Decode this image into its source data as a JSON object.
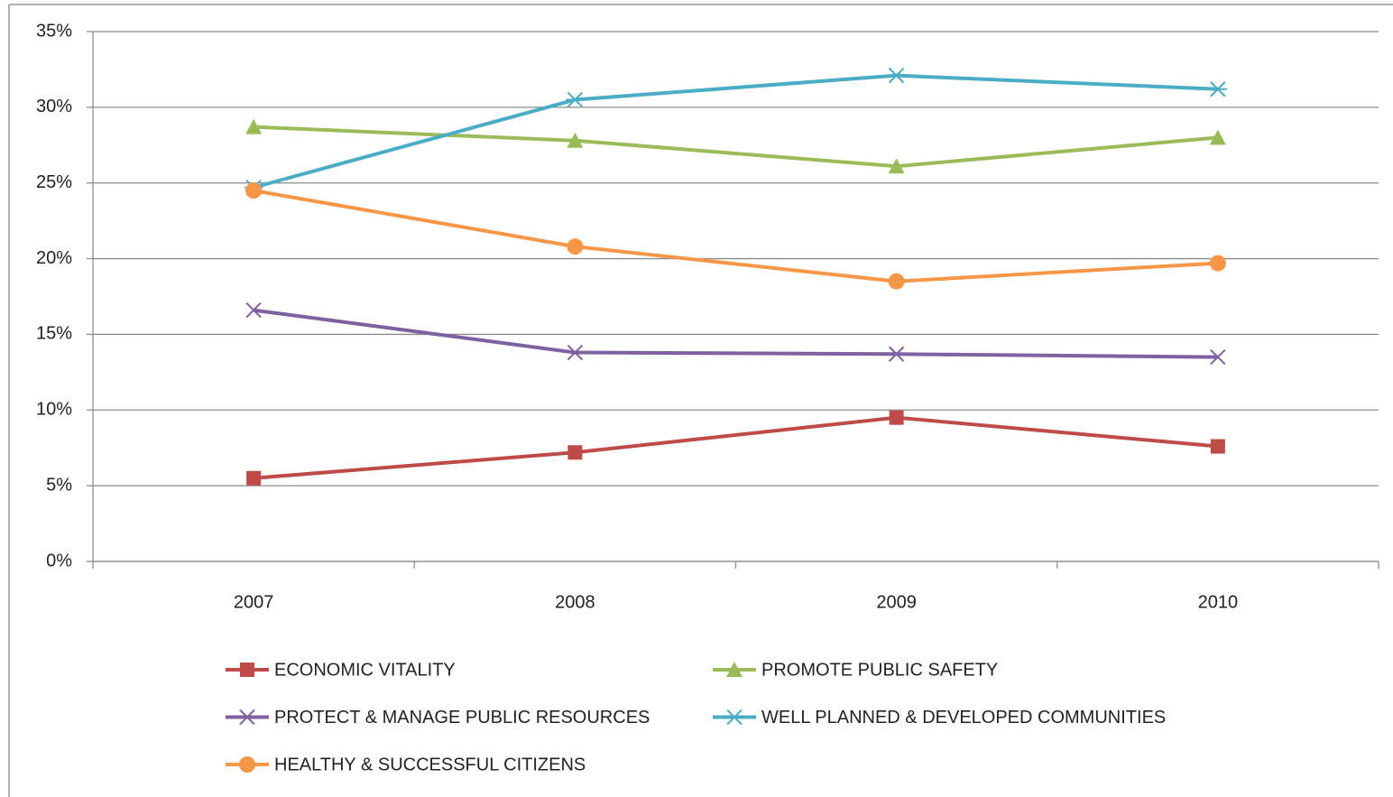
{
  "chart_data": {
    "type": "line",
    "categories": [
      "2007",
      "2008",
      "2009",
      "2010"
    ],
    "series": [
      {
        "name": "ECONOMIC VITALITY",
        "color": "#be4b48",
        "marker": "square",
        "values": [
          5.5,
          7.2,
          9.5,
          7.6
        ]
      },
      {
        "name": "PROMOTE PUBLIC SAFETY",
        "color": "#9bbb59",
        "marker": "triangle",
        "values": [
          28.7,
          27.8,
          26.1,
          28.0
        ]
      },
      {
        "name": "PROTECT & MANAGE PUBLIC RESOURCES",
        "color": "#7f60a0",
        "marker": "x",
        "values": [
          16.6,
          13.8,
          13.7,
          13.5
        ]
      },
      {
        "name": "WELL PLANNED & DEVELOPED COMMUNITIES",
        "color": "#4bacc6",
        "marker": "asterisk",
        "values": [
          24.7,
          30.5,
          32.1,
          31.2
        ]
      },
      {
        "name": "HEALTHY & SUCCESSFUL CITIZENS",
        "color": "#f79646",
        "marker": "circle",
        "values": [
          24.5,
          20.8,
          18.5,
          19.7
        ]
      }
    ],
    "ylim": [
      0,
      35
    ],
    "yticks": [
      {
        "value": 0,
        "label": "0%"
      },
      {
        "value": 5,
        "label": "5%"
      },
      {
        "value": 10,
        "label": "10%"
      },
      {
        "value": 15,
        "label": "15%"
      },
      {
        "value": 20,
        "label": "20%"
      },
      {
        "value": 25,
        "label": "25%"
      },
      {
        "value": 30,
        "label": "30%"
      },
      {
        "value": 35,
        "label": "35%"
      }
    ],
    "grid": true
  }
}
